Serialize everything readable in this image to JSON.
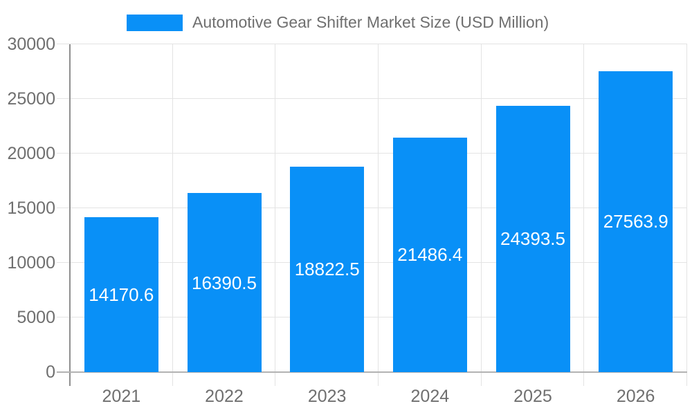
{
  "legend": {
    "label": "Automotive Gear Shifter Market Size (USD Million)"
  },
  "colors": {
    "bar": "#0990f7",
    "gridline": "#e3e3e3",
    "y_axis_line": "#8f8f8f",
    "x_baseline": "#b2b2b2",
    "label_text": "#6f6f6f",
    "value_text": "#ffffff"
  },
  "chart_data": {
    "type": "bar",
    "title": "Automotive Gear Shifter Market Size (USD Million)",
    "series_name": "Automotive Gear Shifter Market Size (USD Million)",
    "categories": [
      "2021",
      "2022",
      "2023",
      "2024",
      "2025",
      "2026"
    ],
    "values": [
      14170.6,
      16390.5,
      18822.5,
      21486.4,
      24393.5,
      27563.9
    ],
    "value_labels": [
      "14170.6",
      "16390.5",
      "18822.5",
      "21486.4",
      "24393.5",
      "27563.9"
    ],
    "ytick_labels": [
      "0",
      "5000",
      "10000",
      "15000",
      "20000",
      "25000",
      "30000"
    ],
    "yticks": [
      0,
      5000,
      10000,
      15000,
      20000,
      25000,
      30000
    ],
    "ylim": [
      0,
      30000
    ],
    "xlabel": "",
    "ylabel": "",
    "grid": true,
    "legend_position": "top",
    "value_label_position": "inside-center"
  }
}
